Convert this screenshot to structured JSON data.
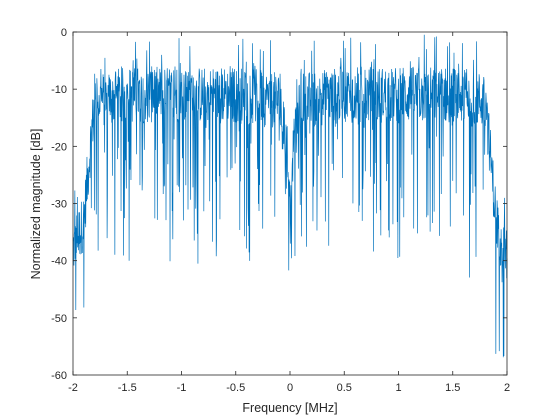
{
  "chart_data": {
    "type": "line",
    "xlabel": "Frequency [MHz]",
    "ylabel": "Normalized magnitude [dB]",
    "xlim": [
      -2,
      2
    ],
    "ylim": [
      -60,
      0
    ],
    "xticks": [
      -2,
      -1.5,
      -1,
      -0.5,
      0,
      0.5,
      1,
      1.5,
      2
    ],
    "xtick_labels": [
      "-2",
      "-1.5",
      "-1",
      "-0.5",
      "0",
      "0.5",
      "1",
      "1.5",
      "2"
    ],
    "yticks": [
      -60,
      -50,
      -40,
      -30,
      -20,
      -10,
      0
    ],
    "ytick_labels": [
      "-60",
      "-50",
      "-40",
      "-30",
      "-20",
      "-10",
      "0"
    ],
    "grid": false,
    "line_color": "#0072BD",
    "series": [
      {
        "name": "",
        "envelope_description": "noisy spectrum",
        "x": [
          -2.0,
          -1.9,
          -1.84,
          -1.8,
          -1.5,
          -1.0,
          -0.5,
          -0.1,
          -0.02,
          0.0,
          0.02,
          0.1,
          0.5,
          1.0,
          1.5,
          1.8,
          1.84,
          1.9,
          2.0
        ],
        "y": [
          -38,
          -33,
          -20,
          -12,
          -11,
          -11,
          -11,
          -12,
          -22,
          -35,
          -22,
          -12,
          -11,
          -11,
          -11,
          -12,
          -20,
          -33,
          -40
        ]
      }
    ]
  }
}
